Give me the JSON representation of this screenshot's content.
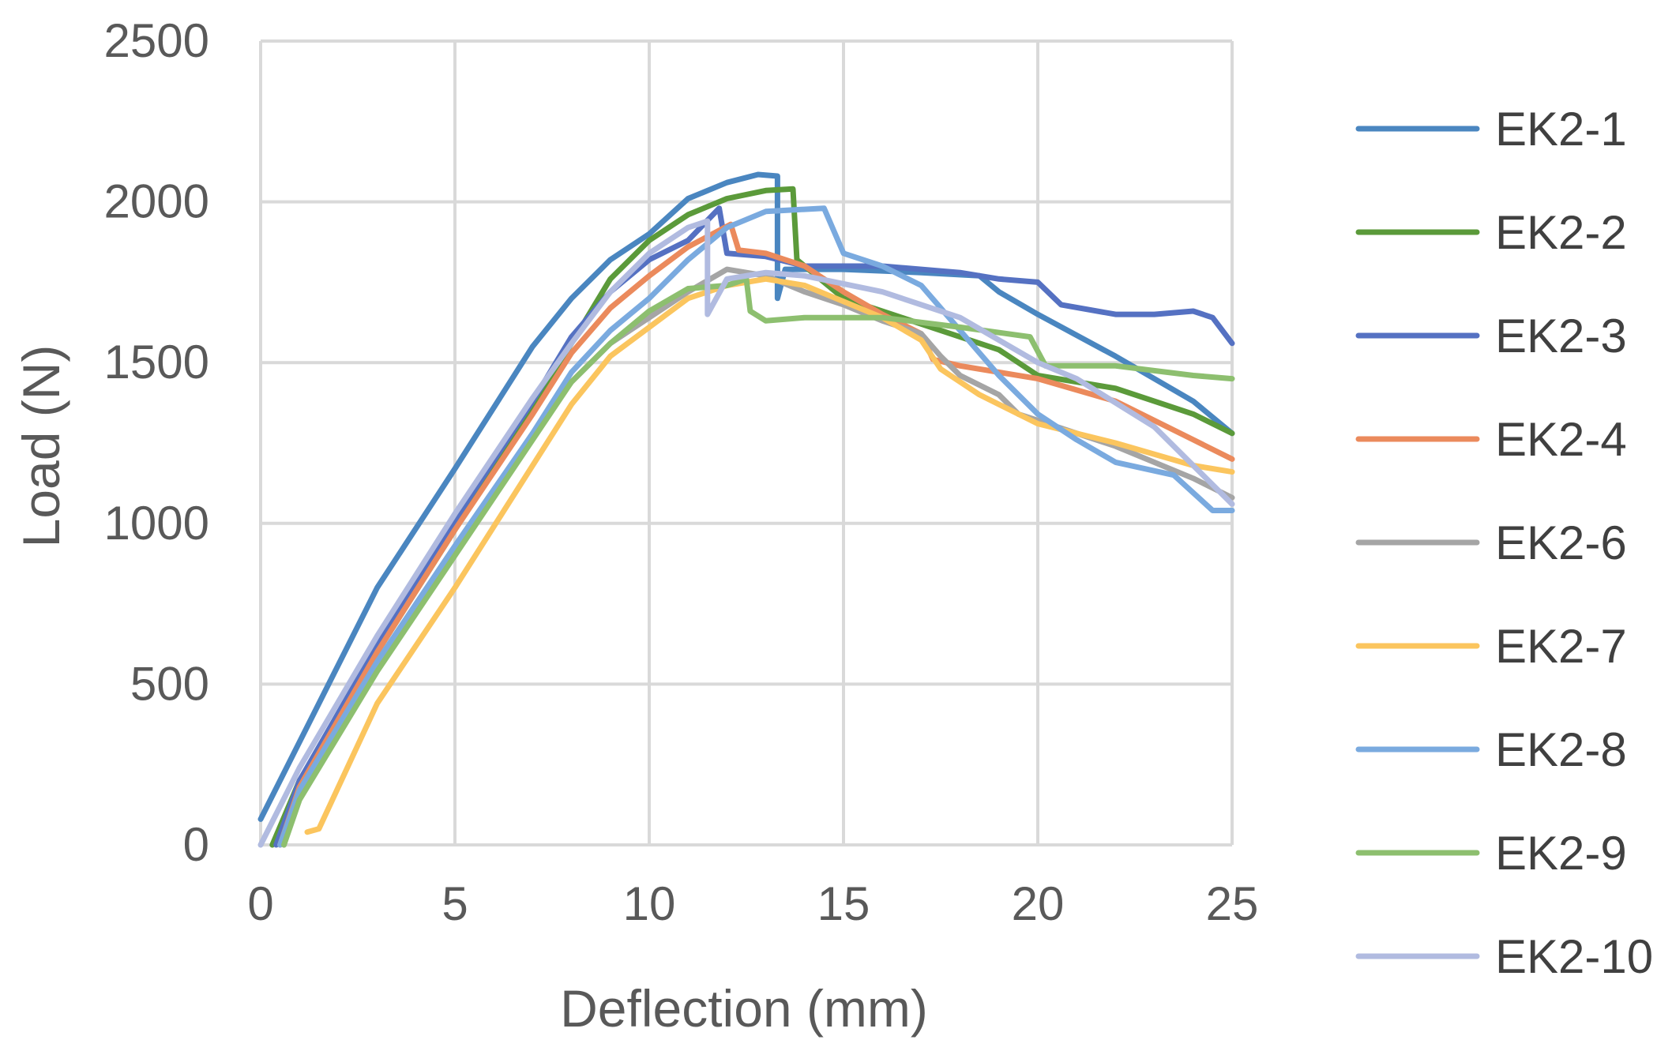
{
  "chart_data": {
    "type": "line",
    "title": "",
    "xlabel": "Deflection (mm)",
    "ylabel": "Load  (N)",
    "xlim": [
      0,
      25
    ],
    "ylim": [
      0,
      2500
    ],
    "xticks": [
      0,
      5,
      10,
      15,
      20,
      25
    ],
    "yticks": [
      0,
      500,
      1000,
      1500,
      2000,
      2500
    ],
    "xtick_labels": [
      "0",
      "5",
      "10",
      "15",
      "20",
      "25"
    ],
    "ytick_labels": [
      "0",
      "500",
      "1000",
      "1500",
      "2000",
      "2500"
    ],
    "grid": true,
    "legend_position": "right",
    "series": [
      {
        "name": "EK2-1",
        "color": "#4a86c0",
        "points": [
          [
            0,
            80
          ],
          [
            1,
            320
          ],
          [
            3,
            800
          ],
          [
            5,
            1170
          ],
          [
            7,
            1550
          ],
          [
            8,
            1700
          ],
          [
            9,
            1820
          ],
          [
            10,
            1900
          ],
          [
            11,
            2010
          ],
          [
            12,
            2060
          ],
          [
            12.8,
            2085
          ],
          [
            13.3,
            2080
          ],
          [
            13.3,
            1700
          ],
          [
            13.5,
            1790
          ],
          [
            15,
            1790
          ],
          [
            17,
            1780
          ],
          [
            18.5,
            1770
          ],
          [
            19,
            1720
          ],
          [
            20,
            1650
          ],
          [
            22,
            1520
          ],
          [
            24,
            1380
          ],
          [
            25,
            1280
          ]
        ]
      },
      {
        "name": "EK2-2",
        "color": "#5b9a3a",
        "points": [
          [
            0.3,
            0
          ],
          [
            1,
            200
          ],
          [
            3,
            600
          ],
          [
            5,
            980
          ],
          [
            7,
            1360
          ],
          [
            8,
            1560
          ],
          [
            9,
            1760
          ],
          [
            10,
            1880
          ],
          [
            11,
            1960
          ],
          [
            12,
            2010
          ],
          [
            13,
            2035
          ],
          [
            13.7,
            2040
          ],
          [
            13.8,
            1820
          ],
          [
            15,
            1700
          ],
          [
            17,
            1620
          ],
          [
            19,
            1540
          ],
          [
            20,
            1460
          ],
          [
            22,
            1420
          ],
          [
            24,
            1340
          ],
          [
            25,
            1280
          ]
        ]
      },
      {
        "name": "EK2-3",
        "color": "#5571c2",
        "points": [
          [
            0.4,
            0
          ],
          [
            1,
            200
          ],
          [
            3,
            620
          ],
          [
            5,
            1010
          ],
          [
            7,
            1380
          ],
          [
            8,
            1580
          ],
          [
            9,
            1720
          ],
          [
            10,
            1820
          ],
          [
            11,
            1880
          ],
          [
            11.8,
            1980
          ],
          [
            12,
            1840
          ],
          [
            13,
            1830
          ],
          [
            14,
            1800
          ],
          [
            16,
            1800
          ],
          [
            18,
            1780
          ],
          [
            19,
            1760
          ],
          [
            20,
            1750
          ],
          [
            20.6,
            1680
          ],
          [
            22,
            1650
          ],
          [
            23,
            1650
          ],
          [
            24,
            1660
          ],
          [
            24.5,
            1640
          ],
          [
            25,
            1560
          ]
        ]
      },
      {
        "name": "EK2-4",
        "color": "#eb8a5c",
        "points": [
          [
            0.5,
            0
          ],
          [
            1,
            180
          ],
          [
            3,
            600
          ],
          [
            5,
            980
          ],
          [
            7,
            1340
          ],
          [
            8,
            1530
          ],
          [
            9,
            1670
          ],
          [
            10,
            1770
          ],
          [
            11,
            1860
          ],
          [
            12.1,
            1930
          ],
          [
            12.3,
            1850
          ],
          [
            13,
            1840
          ],
          [
            14,
            1800
          ],
          [
            15,
            1720
          ],
          [
            16,
            1650
          ],
          [
            17,
            1590
          ],
          [
            17.3,
            1510
          ],
          [
            18,
            1490
          ],
          [
            20,
            1450
          ],
          [
            22,
            1380
          ],
          [
            24,
            1260
          ],
          [
            25,
            1200
          ]
        ]
      },
      {
        "name": "EK2-6",
        "color": "#a5a5a5",
        "points": [
          [
            0.6,
            0
          ],
          [
            1,
            160
          ],
          [
            3,
            560
          ],
          [
            5,
            920
          ],
          [
            7,
            1280
          ],
          [
            8,
            1440
          ],
          [
            9,
            1560
          ],
          [
            10,
            1640
          ],
          [
            11,
            1720
          ],
          [
            12,
            1790
          ],
          [
            13,
            1770
          ],
          [
            14,
            1720
          ],
          [
            15,
            1680
          ],
          [
            16,
            1630
          ],
          [
            17,
            1590
          ],
          [
            17.5,
            1520
          ],
          [
            18,
            1460
          ],
          [
            19,
            1400
          ],
          [
            19.5,
            1340
          ],
          [
            20,
            1320
          ],
          [
            22,
            1240
          ],
          [
            24,
            1140
          ],
          [
            25,
            1080
          ]
        ]
      },
      {
        "name": "EK2-7",
        "color": "#fbc55e",
        "points": [
          [
            1.2,
            40
          ],
          [
            1.5,
            50
          ],
          [
            3,
            440
          ],
          [
            5,
            800
          ],
          [
            7,
            1180
          ],
          [
            8,
            1370
          ],
          [
            9,
            1520
          ],
          [
            10,
            1610
          ],
          [
            11,
            1700
          ],
          [
            12,
            1740
          ],
          [
            13,
            1760
          ],
          [
            14,
            1740
          ],
          [
            15,
            1690
          ],
          [
            16,
            1640
          ],
          [
            17,
            1570
          ],
          [
            17.5,
            1480
          ],
          [
            18.5,
            1400
          ],
          [
            20,
            1310
          ],
          [
            22,
            1250
          ],
          [
            24,
            1180
          ],
          [
            25,
            1160
          ]
        ]
      },
      {
        "name": "EK2-8",
        "color": "#7aaadf",
        "points": [
          [
            0.5,
            0
          ],
          [
            1,
            170
          ],
          [
            3,
            570
          ],
          [
            5,
            930
          ],
          [
            7,
            1280
          ],
          [
            8,
            1470
          ],
          [
            9,
            1600
          ],
          [
            10,
            1700
          ],
          [
            11,
            1820
          ],
          [
            12,
            1920
          ],
          [
            13,
            1970
          ],
          [
            14.5,
            1980
          ],
          [
            15,
            1840
          ],
          [
            16,
            1800
          ],
          [
            17,
            1740
          ],
          [
            18,
            1600
          ],
          [
            19,
            1460
          ],
          [
            20,
            1340
          ],
          [
            21,
            1260
          ],
          [
            22,
            1190
          ],
          [
            23.5,
            1150
          ],
          [
            24.5,
            1040
          ],
          [
            25,
            1040
          ]
        ]
      },
      {
        "name": "EK2-9",
        "color": "#8dbf6f",
        "points": [
          [
            0.6,
            0
          ],
          [
            1,
            140
          ],
          [
            3,
            540
          ],
          [
            5,
            900
          ],
          [
            7,
            1260
          ],
          [
            8,
            1440
          ],
          [
            9,
            1560
          ],
          [
            10,
            1660
          ],
          [
            11,
            1730
          ],
          [
            12,
            1740
          ],
          [
            12.5,
            1760
          ],
          [
            12.6,
            1660
          ],
          [
            13,
            1630
          ],
          [
            14,
            1640
          ],
          [
            16,
            1640
          ],
          [
            18,
            1610
          ],
          [
            19.8,
            1580
          ],
          [
            20.2,
            1490
          ],
          [
            22,
            1490
          ],
          [
            24,
            1460
          ],
          [
            25,
            1450
          ]
        ]
      },
      {
        "name": "EK2-10",
        "color": "#b1bbe0",
        "points": [
          [
            0,
            0
          ],
          [
            1,
            240
          ],
          [
            3,
            650
          ],
          [
            5,
            1030
          ],
          [
            7,
            1390
          ],
          [
            8,
            1560
          ],
          [
            9,
            1720
          ],
          [
            10,
            1840
          ],
          [
            11,
            1920
          ],
          [
            11.5,
            1940
          ],
          [
            11.5,
            1650
          ],
          [
            12,
            1760
          ],
          [
            13,
            1780
          ],
          [
            14,
            1770
          ],
          [
            16,
            1720
          ],
          [
            18,
            1640
          ],
          [
            20,
            1500
          ],
          [
            21,
            1450
          ],
          [
            23,
            1300
          ],
          [
            24,
            1180
          ],
          [
            25,
            1060
          ]
        ]
      }
    ]
  }
}
